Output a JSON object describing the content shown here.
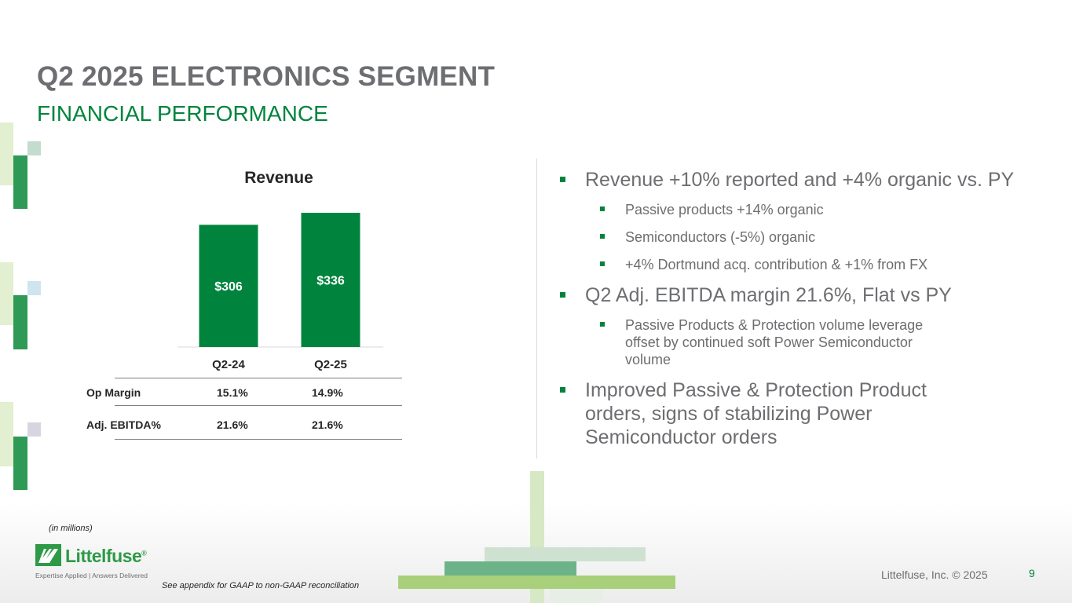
{
  "slide": {
    "title": "Q2 2025 ELECTRONICS SEGMENT",
    "subtitle": "FINANCIAL PERFORMANCE",
    "units_note": "(in millions)",
    "appendix_note": "See appendix for GAAP to non-GAAP reconciliation",
    "copyright": "Littelfuse, Inc. © 2025",
    "page_number": "9",
    "logo": {
      "wordmark": "Littelfuse",
      "registered": "®",
      "tagline": "Expertise Applied | Answers Delivered"
    }
  },
  "colors": {
    "brand_green": "#00843d",
    "light_green": "#a8cf7a",
    "gray_text": "#6d6e71"
  },
  "chart_data": {
    "type": "bar",
    "title": "Revenue",
    "categories": [
      "Q2-24",
      "Q2-25"
    ],
    "values": [
      306,
      336
    ],
    "data_labels": [
      "$306",
      "$336"
    ],
    "xlabel": "",
    "ylabel": "",
    "grid": false,
    "legend": "none"
  },
  "metrics_table": {
    "rows": [
      {
        "label": "Op Margin",
        "values": [
          "15.1%",
          "14.9%"
        ]
      },
      {
        "label": "Adj. EBITDA%",
        "values": [
          "21.6%",
          "21.6%"
        ]
      }
    ]
  },
  "bullets": [
    {
      "level": 1,
      "text": "Revenue +10% reported and +4% organic vs. PY"
    },
    {
      "level": 2,
      "text": "Passive products +14% organic"
    },
    {
      "level": 2,
      "text": "Semiconductors (-5%) organic"
    },
    {
      "level": 2,
      "text": "+4% Dortmund acq. contribution & +1% from FX"
    },
    {
      "level": 1,
      "text": "Q2 Adj. EBITDA margin 21.6%, Flat vs PY"
    },
    {
      "level": 2,
      "text": "Passive Products & Protection volume leverage offset by continued soft Power Semiconductor volume"
    },
    {
      "level": 1,
      "text": "Improved Passive & Protection Product orders, signs of stabilizing Power Semiconductor orders"
    }
  ]
}
